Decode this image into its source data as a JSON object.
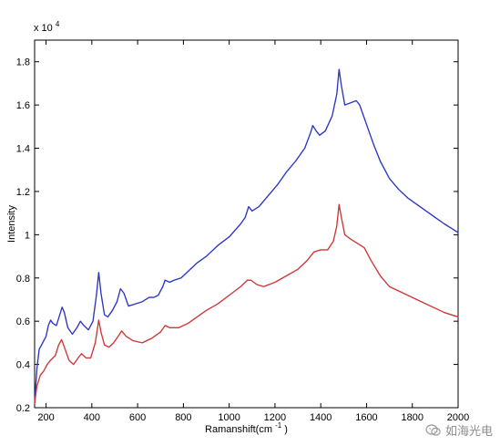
{
  "chart_data": {
    "type": "line",
    "title": "",
    "xlabel": "Ramanshift(cm",
    "xlabel_sup": "-1",
    "xlabel_suffix": ")",
    "ylabel": "Intensity",
    "y_multiplier": "x 10",
    "y_multiplier_exp": "4",
    "xlim": [
      150,
      2000
    ],
    "ylim": [
      0.2,
      1.9
    ],
    "grid": false,
    "x_ticks": [
      200,
      400,
      600,
      800,
      1000,
      1200,
      1400,
      1600,
      1800,
      2000
    ],
    "y_ticks": [
      0.2,
      0.4,
      0.6,
      0.8,
      1,
      1.2,
      1.4,
      1.6,
      1.8
    ],
    "series": [
      {
        "color": "#2b35c4",
        "points": [
          [
            150,
            0.22
          ],
          [
            160,
            0.38
          ],
          [
            170,
            0.47
          ],
          [
            185,
            0.5
          ],
          [
            200,
            0.53
          ],
          [
            210,
            0.58
          ],
          [
            220,
            0.605
          ],
          [
            230,
            0.59
          ],
          [
            245,
            0.58
          ],
          [
            260,
            0.63
          ],
          [
            270,
            0.665
          ],
          [
            280,
            0.64
          ],
          [
            295,
            0.57
          ],
          [
            315,
            0.54
          ],
          [
            335,
            0.57
          ],
          [
            350,
            0.6
          ],
          [
            365,
            0.58
          ],
          [
            385,
            0.56
          ],
          [
            405,
            0.6
          ],
          [
            420,
            0.72
          ],
          [
            430,
            0.825
          ],
          [
            440,
            0.73
          ],
          [
            455,
            0.63
          ],
          [
            470,
            0.62
          ],
          [
            490,
            0.65
          ],
          [
            510,
            0.69
          ],
          [
            525,
            0.75
          ],
          [
            540,
            0.73
          ],
          [
            560,
            0.67
          ],
          [
            590,
            0.68
          ],
          [
            620,
            0.69
          ],
          [
            650,
            0.71
          ],
          [
            670,
            0.71
          ],
          [
            690,
            0.72
          ],
          [
            710,
            0.76
          ],
          [
            720,
            0.79
          ],
          [
            740,
            0.78
          ],
          [
            760,
            0.79
          ],
          [
            790,
            0.8
          ],
          [
            820,
            0.83
          ],
          [
            860,
            0.87
          ],
          [
            900,
            0.9
          ],
          [
            950,
            0.95
          ],
          [
            1000,
            0.99
          ],
          [
            1050,
            1.05
          ],
          [
            1070,
            1.08
          ],
          [
            1085,
            1.13
          ],
          [
            1100,
            1.11
          ],
          [
            1130,
            1.13
          ],
          [
            1170,
            1.18
          ],
          [
            1210,
            1.23
          ],
          [
            1250,
            1.29
          ],
          [
            1290,
            1.34
          ],
          [
            1330,
            1.4
          ],
          [
            1355,
            1.47
          ],
          [
            1365,
            1.505
          ],
          [
            1380,
            1.48
          ],
          [
            1395,
            1.46
          ],
          [
            1420,
            1.48
          ],
          [
            1450,
            1.55
          ],
          [
            1470,
            1.65
          ],
          [
            1480,
            1.765
          ],
          [
            1490,
            1.69
          ],
          [
            1505,
            1.6
          ],
          [
            1530,
            1.61
          ],
          [
            1555,
            1.62
          ],
          [
            1570,
            1.6
          ],
          [
            1600,
            1.51
          ],
          [
            1630,
            1.42
          ],
          [
            1660,
            1.34
          ],
          [
            1700,
            1.26
          ],
          [
            1740,
            1.21
          ],
          [
            1780,
            1.17
          ],
          [
            1820,
            1.14
          ],
          [
            1860,
            1.11
          ],
          [
            1900,
            1.08
          ],
          [
            1940,
            1.05
          ],
          [
            1970,
            1.03
          ],
          [
            2000,
            1.01
          ]
        ]
      },
      {
        "color": "#d03535",
        "points": [
          [
            150,
            0.22
          ],
          [
            160,
            0.3
          ],
          [
            175,
            0.35
          ],
          [
            190,
            0.37
          ],
          [
            205,
            0.4
          ],
          [
            220,
            0.42
          ],
          [
            240,
            0.44
          ],
          [
            255,
            0.49
          ],
          [
            268,
            0.515
          ],
          [
            280,
            0.48
          ],
          [
            300,
            0.42
          ],
          [
            320,
            0.4
          ],
          [
            340,
            0.43
          ],
          [
            355,
            0.45
          ],
          [
            375,
            0.43
          ],
          [
            395,
            0.43
          ],
          [
            415,
            0.5
          ],
          [
            430,
            0.605
          ],
          [
            440,
            0.55
          ],
          [
            455,
            0.49
          ],
          [
            475,
            0.48
          ],
          [
            495,
            0.5
          ],
          [
            515,
            0.53
          ],
          [
            530,
            0.555
          ],
          [
            550,
            0.53
          ],
          [
            580,
            0.51
          ],
          [
            620,
            0.5
          ],
          [
            660,
            0.52
          ],
          [
            700,
            0.55
          ],
          [
            720,
            0.58
          ],
          [
            740,
            0.57
          ],
          [
            780,
            0.57
          ],
          [
            820,
            0.59
          ],
          [
            860,
            0.62
          ],
          [
            900,
            0.65
          ],
          [
            950,
            0.68
          ],
          [
            1000,
            0.72
          ],
          [
            1050,
            0.76
          ],
          [
            1080,
            0.79
          ],
          [
            1095,
            0.79
          ],
          [
            1120,
            0.77
          ],
          [
            1150,
            0.76
          ],
          [
            1200,
            0.78
          ],
          [
            1250,
            0.81
          ],
          [
            1300,
            0.84
          ],
          [
            1340,
            0.88
          ],
          [
            1370,
            0.92
          ],
          [
            1400,
            0.93
          ],
          [
            1430,
            0.93
          ],
          [
            1455,
            0.97
          ],
          [
            1470,
            1.04
          ],
          [
            1480,
            1.14
          ],
          [
            1490,
            1.08
          ],
          [
            1505,
            1.0
          ],
          [
            1530,
            0.98
          ],
          [
            1560,
            0.96
          ],
          [
            1590,
            0.94
          ],
          [
            1620,
            0.88
          ],
          [
            1660,
            0.81
          ],
          [
            1700,
            0.76
          ],
          [
            1740,
            0.74
          ],
          [
            1780,
            0.72
          ],
          [
            1820,
            0.7
          ],
          [
            1860,
            0.68
          ],
          [
            1900,
            0.66
          ],
          [
            1940,
            0.64
          ],
          [
            1970,
            0.63
          ],
          [
            2000,
            0.62
          ]
        ]
      }
    ]
  },
  "watermark": {
    "text": "如海光电",
    "icon": "wechat-icon"
  }
}
